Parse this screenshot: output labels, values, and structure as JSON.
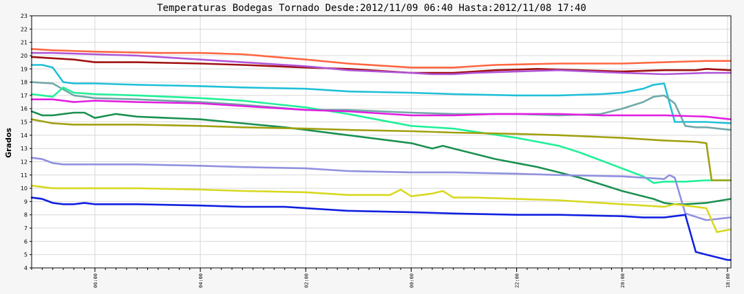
{
  "chart_data": {
    "type": "line",
    "title": "Temperaturas Bodegas Tornado Desde:2012/11/09 06:40 Hasta:2012/11/08 17:40",
    "ylabel": "Grados",
    "xlabel": "",
    "ylim": [
      4,
      23
    ],
    "y_ticks": [
      "4",
      "5",
      "6",
      "7",
      "8",
      "9",
      "10",
      "11",
      "12",
      "13",
      "14",
      "15",
      "16",
      "17",
      "18",
      "19",
      "20",
      "21",
      "22",
      "23"
    ],
    "x_ticks": [
      {
        "label": "06:00",
        "x": 6.0
      },
      {
        "label": "04:00",
        "x": 16.0
      },
      {
        "label": "02:00",
        "x": 26.0
      },
      {
        "label": "00:00",
        "x": 36.0
      },
      {
        "label": "22:00",
        "x": 46.0
      },
      {
        "label": "20:00",
        "x": 56.0
      },
      {
        "label": "18:00",
        "x": 66.0
      }
    ],
    "xlim": [
      0,
      66.33
    ],
    "x_axis_note": "time runs from 06:40 (left) back to 17:40 (right); x in 10-minute steps from left edge",
    "grid": true,
    "colors": {
      "background": "#f6f6f6",
      "plot_bg": "#ffffff",
      "grid": "#d8d8d8",
      "axis": "#000000"
    },
    "series": [
      {
        "color": "#ff6640",
        "x": [
          0,
          2,
          6,
          12,
          16,
          20,
          26,
          30,
          36,
          40,
          44,
          50,
          56,
          60,
          64,
          66.3
        ],
        "y": [
          20.5,
          20.4,
          20.3,
          20.2,
          20.2,
          20.1,
          19.7,
          19.4,
          19.1,
          19.1,
          19.3,
          19.4,
          19.4,
          19.5,
          19.6,
          19.6
        ]
      },
      {
        "color": "#a01010",
        "x": [
          0,
          2,
          4,
          6,
          10,
          16,
          20,
          26,
          30,
          36,
          40,
          44,
          48,
          52,
          56,
          60,
          63,
          64,
          66.3
        ],
        "y": [
          19.9,
          19.8,
          19.7,
          19.5,
          19.5,
          19.4,
          19.3,
          19.1,
          19.0,
          18.7,
          18.7,
          18.9,
          19.0,
          18.9,
          18.8,
          18.9,
          18.9,
          19.0,
          18.9
        ]
      },
      {
        "color": "#b055d8",
        "x": [
          0,
          2,
          6,
          10,
          16,
          20,
          26,
          30,
          36,
          38,
          40,
          42,
          46,
          50,
          56,
          60,
          64,
          66.3
        ],
        "y": [
          20.2,
          20.2,
          20.1,
          20.0,
          19.7,
          19.5,
          19.2,
          18.9,
          18.7,
          18.6,
          18.6,
          18.7,
          18.8,
          18.9,
          18.7,
          18.6,
          18.7,
          18.7
        ]
      },
      {
        "color": "#1fc0d8",
        "x": [
          0,
          1,
          2,
          3,
          4,
          6,
          10,
          16,
          20,
          26,
          30,
          36,
          40,
          46,
          50,
          54,
          56,
          58,
          59,
          60,
          61,
          62,
          63,
          64,
          66.3
        ],
        "y": [
          19.3,
          19.3,
          19.1,
          18.0,
          17.9,
          17.9,
          17.8,
          17.7,
          17.6,
          17.5,
          17.3,
          17.2,
          17.1,
          17.0,
          17.0,
          17.1,
          17.2,
          17.5,
          17.8,
          17.9,
          15.0,
          15.0,
          15.0,
          15.0,
          14.9
        ]
      },
      {
        "color": "#70a8a8",
        "x": [
          0,
          2,
          4,
          6,
          10,
          16,
          20,
          26,
          30,
          36,
          40,
          46,
          50,
          54,
          56,
          58,
          59,
          60,
          61,
          62,
          63,
          64,
          66.3
        ],
        "y": [
          18.0,
          17.9,
          17.0,
          16.8,
          16.7,
          16.5,
          16.3,
          15.9,
          15.9,
          15.7,
          15.6,
          15.6,
          15.5,
          15.6,
          16.0,
          16.5,
          16.9,
          17.0,
          16.4,
          14.7,
          14.6,
          14.6,
          14.4
        ]
      },
      {
        "color": "#20f098",
        "x": [
          0,
          2,
          3,
          4,
          6,
          10,
          16,
          20,
          26,
          30,
          36,
          40,
          46,
          50,
          52,
          54,
          56,
          58,
          59,
          60,
          62,
          64,
          66.3
        ],
        "y": [
          17.1,
          16.9,
          17.6,
          17.2,
          17.1,
          17.0,
          16.8,
          16.6,
          16.1,
          15.6,
          14.7,
          14.5,
          13.8,
          13.2,
          12.7,
          12.1,
          11.5,
          10.9,
          10.4,
          10.5,
          10.5,
          10.6,
          10.6
        ]
      },
      {
        "color": "#e020e0",
        "x": [
          0,
          2,
          3,
          4,
          6,
          10,
          16,
          20,
          26,
          30,
          36,
          40,
          44,
          46,
          50,
          54,
          56,
          58,
          60,
          64,
          66.3
        ],
        "y": [
          16.7,
          16.7,
          16.6,
          16.5,
          16.6,
          16.5,
          16.4,
          16.2,
          15.9,
          15.8,
          15.5,
          15.5,
          15.6,
          15.6,
          15.6,
          15.5,
          15.5,
          15.5,
          15.5,
          15.4,
          15.2
        ]
      },
      {
        "color": "#1a9050",
        "x": [
          0,
          1,
          2,
          3,
          4,
          5,
          6,
          8,
          10,
          16,
          20,
          24,
          26,
          30,
          34,
          36,
          38,
          39,
          40,
          42,
          44,
          48,
          50,
          52,
          54,
          56,
          58,
          59,
          60,
          61,
          62,
          64,
          66.3
        ],
        "y": [
          15.8,
          15.5,
          15.5,
          15.6,
          15.7,
          15.7,
          15.3,
          15.6,
          15.4,
          15.2,
          14.9,
          14.6,
          14.4,
          14.0,
          13.6,
          13.4,
          13.0,
          13.2,
          13.0,
          12.6,
          12.2,
          11.6,
          11.2,
          10.8,
          10.3,
          9.8,
          9.4,
          9.2,
          8.9,
          8.8,
          8.8,
          8.9,
          9.2
        ]
      },
      {
        "color": "#a0a010",
        "x": [
          0,
          2,
          4,
          6,
          10,
          16,
          20,
          26,
          30,
          36,
          40,
          46,
          50,
          56,
          60,
          63,
          64,
          64.5,
          65,
          66.3
        ],
        "y": [
          15.2,
          14.9,
          14.8,
          14.8,
          14.8,
          14.7,
          14.6,
          14.5,
          14.4,
          14.3,
          14.2,
          14.1,
          14.0,
          13.8,
          13.6,
          13.5,
          13.4,
          10.6,
          10.6,
          10.6
        ]
      },
      {
        "color": "#9090e0",
        "x": [
          0,
          1,
          2,
          3,
          6,
          10,
          16,
          20,
          26,
          30,
          36,
          40,
          46,
          50,
          56,
          58,
          60,
          60.5,
          61,
          62,
          64,
          66.3
        ],
        "y": [
          12.3,
          12.2,
          11.9,
          11.8,
          11.8,
          11.8,
          11.7,
          11.6,
          11.5,
          11.3,
          11.2,
          11.2,
          11.1,
          11.0,
          10.9,
          10.8,
          10.7,
          11.0,
          10.8,
          8.1,
          7.6,
          7.8
        ]
      },
      {
        "color": "#d8d820",
        "x": [
          0,
          2,
          6,
          10,
          16,
          20,
          26,
          30,
          34,
          35,
          36,
          38,
          39,
          40,
          42,
          46,
          50,
          54,
          58,
          60,
          61,
          62,
          63,
          64,
          65,
          66.3
        ],
        "y": [
          10.2,
          10.0,
          10.0,
          10.0,
          9.9,
          9.8,
          9.7,
          9.5,
          9.5,
          9.9,
          9.4,
          9.6,
          9.8,
          9.3,
          9.3,
          9.2,
          9.1,
          8.9,
          8.7,
          8.6,
          8.8,
          8.7,
          8.6,
          8.5,
          6.7,
          6.9
        ]
      },
      {
        "color": "#1020e0",
        "x": [
          0,
          1,
          2,
          3,
          4,
          5,
          6,
          10,
          16,
          20,
          24,
          26,
          30,
          36,
          40,
          46,
          50,
          56,
          58,
          60,
          61,
          62,
          63,
          64,
          66,
          66.3
        ],
        "y": [
          9.3,
          9.2,
          8.9,
          8.8,
          8.8,
          8.9,
          8.8,
          8.8,
          8.7,
          8.6,
          8.6,
          8.5,
          8.3,
          8.2,
          8.1,
          8.0,
          8.0,
          7.9,
          7.8,
          7.8,
          7.9,
          8.0,
          5.2,
          5.0,
          4.6,
          4.6
        ]
      }
    ]
  }
}
